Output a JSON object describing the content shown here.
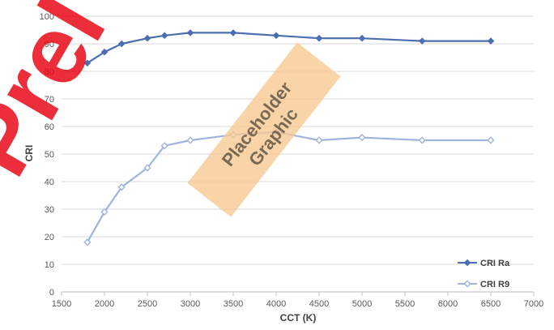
{
  "chart_data": {
    "type": "line",
    "xlabel": "CCT (K)",
    "ylabel": "CRI",
    "xlim": [
      1500,
      7000
    ],
    "ylim": [
      0,
      100
    ],
    "x_ticks": [
      "1500",
      "2000",
      "2500",
      "3000",
      "3500",
      "4000",
      "4500",
      "5000",
      "5500",
      "6000",
      "6500",
      "7000"
    ],
    "y_ticks": [
      "0",
      "10",
      "20",
      "30",
      "40",
      "50",
      "60",
      "70",
      "80",
      "90",
      "100"
    ],
    "grid": true,
    "legend_position": "bottom-right",
    "series": [
      {
        "name": "CRI Ra",
        "color": "#4a6eb0",
        "marker": "diamond-filled",
        "x": [
          1800,
          2000,
          2200,
          2500,
          2700,
          3000,
          3500,
          4000,
          4500,
          5000,
          5700,
          6500
        ],
        "y": [
          83,
          87,
          90,
          92,
          93,
          94,
          94,
          93,
          92,
          92,
          91,
          91
        ]
      },
      {
        "name": "CRI R9",
        "color": "#9fb4dc",
        "marker": "diamond-open",
        "x": [
          1800,
          2000,
          2200,
          2500,
          2700,
          3000,
          3500,
          4000,
          4500,
          5000,
          5700,
          6500
        ],
        "y": [
          18,
          29,
          38,
          45,
          53,
          55,
          57,
          58,
          55,
          56,
          55,
          55
        ]
      }
    ]
  },
  "overlay": {
    "placeholder_line1": "Placeholder",
    "placeholder_line2": "Graphic",
    "watermark": "Prel"
  }
}
